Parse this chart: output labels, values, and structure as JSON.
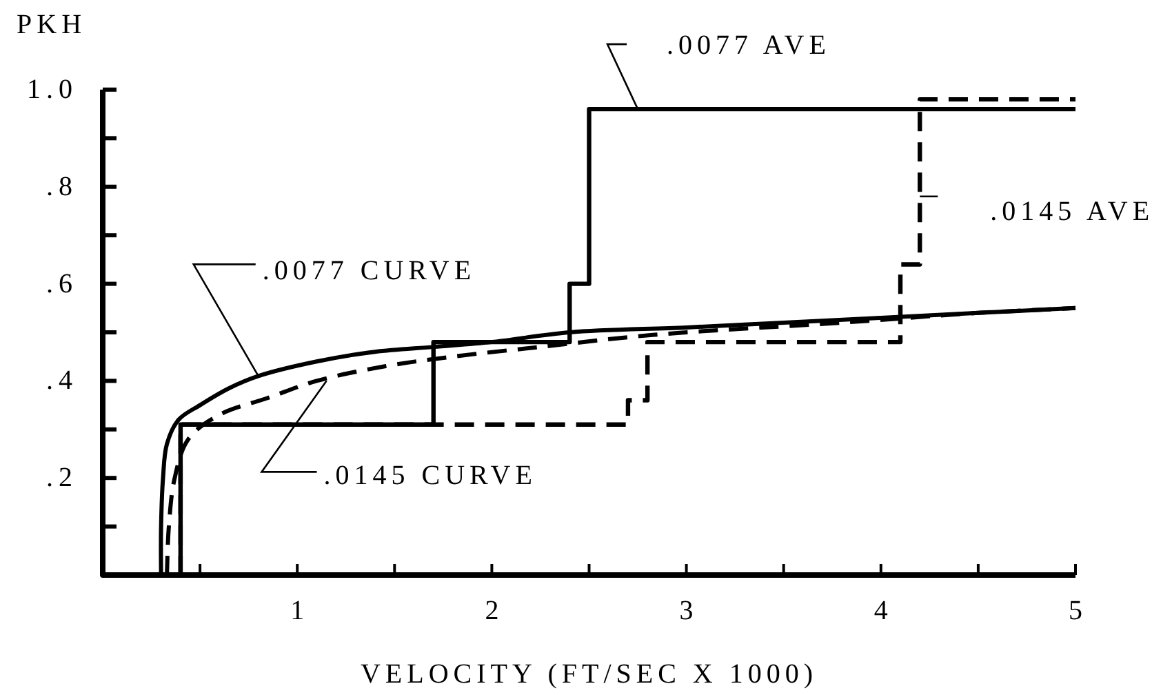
{
  "chart_data": {
    "type": "line",
    "xlabel": "VELOCITY (FT/SEC X 1000)",
    "ylabel": "PKH",
    "xlim": [
      0,
      5
    ],
    "ylim": [
      0,
      1
    ],
    "xticks": [
      {
        "value": 0.5,
        "label": null
      },
      1,
      {
        "value": 1.5,
        "label": null
      },
      2,
      {
        "value": 2.5,
        "label": null
      },
      3,
      {
        "value": 3.5,
        "label": null
      },
      4,
      {
        "value": 4.5,
        "label": null
      },
      5
    ],
    "yticks": [
      {
        "value": 0.1,
        "label": null
      },
      {
        "value": 0.2,
        "label": ".2"
      },
      {
        "value": 0.3,
        "label": null
      },
      {
        "value": 0.4,
        "label": ".4"
      },
      {
        "value": 0.5,
        "label": null
      },
      {
        "value": 0.6,
        "label": ".6"
      },
      {
        "value": 0.7,
        "label": null
      },
      {
        "value": 0.8,
        "label": ".8"
      },
      {
        "value": 0.9,
        "label": null
      },
      {
        "value": 1,
        "label": "1.0"
      }
    ],
    "series": [
      {
        "color": "#000000",
        "line_style": "solid",
        "x": [
          0.3,
          0.3,
          0.31,
          0.33,
          0.39,
          0.5,
          0.65,
          0.8,
          1.1,
          1.4,
          1.7,
          2.0,
          2.4,
          3.0,
          3.5,
          4.0,
          4.5,
          5.0
        ],
        "values": [
          0,
          0.1,
          0.2,
          0.27,
          0.32,
          0.35,
          0.385,
          0.41,
          0.44,
          0.46,
          0.47,
          0.48,
          0.5,
          0.51,
          0.52,
          0.53,
          0.54,
          0.55
        ]
      },
      {
        "color": "#000000",
        "line_style": "dashed",
        "x": [
          0.33,
          0.34,
          0.37,
          0.44,
          0.6,
          0.85,
          1.1,
          1.45,
          1.8,
          2.25,
          2.7,
          3.0,
          3.8,
          4.5,
          5.0
        ],
        "values": [
          0,
          0.1,
          0.2,
          0.28,
          0.33,
          0.365,
          0.4,
          0.43,
          0.45,
          0.47,
          0.49,
          0.5,
          0.52,
          0.54,
          0.55
        ]
      },
      {
        "type": "step",
        "color": "#000000",
        "line_style": "solid",
        "x": [
          0.4,
          0.4,
          1.7,
          2.4,
          2.5,
          5.0
        ],
        "values": [
          0,
          0.31,
          0.48,
          0.6,
          0.96,
          0.96
        ]
      },
      {
        "type": "step",
        "color": "#000000",
        "line_style": "dashed",
        "x": [
          0.4,
          0.4,
          2.7,
          2.8,
          4.1,
          4.2,
          5.0
        ],
        "values": [
          0,
          0.31,
          0.36,
          0.48,
          0.64,
          0.98,
          0.98
        ]
      }
    ],
    "annotations": [
      {
        "text": ".0077 AVE",
        "x": 2.75,
        "y": 0.96
      },
      {
        "text": ".0145 AVE",
        "x": 4.2,
        "y": 0.78
      },
      {
        "text": ".0077 CURVE",
        "x": 0.8,
        "y": 0.41
      },
      {
        "text": ".0145 CURVE",
        "x": 1.15,
        "y": 0.4
      }
    ]
  }
}
